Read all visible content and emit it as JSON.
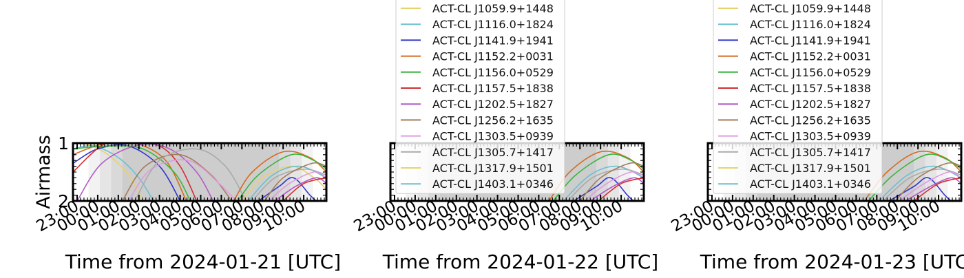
{
  "chart_data": [
    {
      "type": "line",
      "xlabel": "Time from 2024-01-21 [UTC]",
      "ylabel": "Airmass",
      "ylim": [
        2,
        1
      ],
      "y_ticks": [
        "1",
        "2"
      ],
      "x_ticks": [
        "23:00",
        "00:00",
        "01:00",
        "02:00",
        "03:00",
        "04:00",
        "05:00",
        "06:00",
        "07:00",
        "08:00",
        "09:00",
        "10:00"
      ],
      "x_tick_hours": [
        23,
        24,
        25,
        26,
        27,
        28,
        29,
        30,
        31,
        32,
        33,
        34
      ],
      "xlim_hours": [
        22.8,
        35.1
      ],
      "night_shading_hours": [
        [
          23.55,
          34.45
        ],
        [
          24.1,
          33.9
        ],
        [
          24.65,
          33.35
        ],
        [
          25.2,
          32.8
        ]
      ],
      "legend": false,
      "series": [
        {
          "color": "#e8d36a",
          "airmass": [
            [
              22.8,
              1.0
            ],
            [
              23.5,
              1.02
            ],
            [
              24.5,
              1.2
            ],
            [
              25.5,
              1.55
            ],
            [
              26.2,
              2.0
            ]
          ]
        },
        {
          "color": "#6cbfd0",
          "airmass": [
            [
              22.8,
              1.1
            ],
            [
              23.8,
              1.05
            ],
            [
              25.0,
              1.25
            ],
            [
              26.0,
              1.6
            ],
            [
              26.7,
              2.0
            ]
          ]
        },
        {
          "color": "#2f35c9",
          "airmass": [
            [
              22.8,
              1.35
            ],
            [
              24.0,
              1.1
            ],
            [
              25.5,
              1.05
            ],
            [
              27.0,
              1.4
            ],
            [
              28.0,
              2.0
            ]
          ]
        },
        {
          "color": "#d46a1e",
          "airmass": [
            [
              22.8,
              1.2
            ],
            [
              24.2,
              1.02
            ],
            [
              25.8,
              1.0
            ],
            [
              27.3,
              1.3
            ],
            [
              28.3,
              2.0
            ]
          ]
        },
        {
          "color": "#3cb43c",
          "airmass": [
            [
              22.8,
              1.1
            ],
            [
              24.5,
              1.05
            ],
            [
              26.2,
              1.1
            ],
            [
              27.7,
              1.5
            ],
            [
              28.5,
              2.0
            ]
          ]
        },
        {
          "color": "#d12f2f",
          "airmass": [
            [
              22.8,
              1.5
            ],
            [
              24.3,
              1.02
            ],
            [
              25.6,
              1.0
            ],
            [
              27.0,
              1.05
            ],
            [
              28.0,
              1.4
            ],
            [
              28.8,
              2.0
            ]
          ]
        },
        {
          "color": "#b25ac8",
          "airmass": [
            [
              23.0,
              2.0
            ],
            [
              24.2,
              1.35
            ],
            [
              26.0,
              1.03
            ],
            [
              27.5,
              1.1
            ],
            [
              28.8,
              1.5
            ],
            [
              29.6,
              2.0
            ]
          ]
        },
        {
          "color": "#a57c5a",
          "airmass": [
            [
              25.2,
              2.0
            ],
            [
              26.3,
              1.4
            ],
            [
              28.0,
              1.2
            ],
            [
              29.5,
              1.55
            ],
            [
              30.5,
              2.0
            ]
          ]
        },
        {
          "color": "#e09ae0",
          "airmass": [
            [
              25.5,
              2.0
            ],
            [
              26.6,
              1.45
            ],
            [
              28.4,
              1.3
            ],
            [
              29.9,
              1.7
            ],
            [
              30.7,
              2.0
            ]
          ]
        },
        {
          "color": "#aaaaaa",
          "airmass": [
            [
              25.8,
              2.0
            ],
            [
              27.0,
              1.3
            ],
            [
              28.8,
              1.1
            ],
            [
              30.2,
              1.4
            ],
            [
              31.2,
              2.0
            ]
          ]
        },
        {
          "color": "#d46a1e",
          "airmass": [
            [
              30.6,
              2.0
            ],
            [
              31.5,
              1.5
            ],
            [
              33.0,
              1.15
            ],
            [
              34.3,
              1.25
            ],
            [
              35.1,
              1.5
            ]
          ]
        },
        {
          "color": "#3cb43c",
          "airmass": [
            [
              30.8,
              2.0
            ],
            [
              31.8,
              1.55
            ],
            [
              33.4,
              1.2
            ],
            [
              34.5,
              1.3
            ],
            [
              35.1,
              1.45
            ]
          ]
        },
        {
          "color": "#e8d36a",
          "airmass": [
            [
              31.0,
              2.0
            ],
            [
              32.0,
              1.6
            ],
            [
              33.4,
              1.4
            ],
            [
              34.5,
              1.6
            ],
            [
              35.1,
              1.8
            ]
          ]
        },
        {
          "color": "#6cbfd0",
          "airmass": [
            [
              31.3,
              2.0
            ],
            [
              32.5,
              1.55
            ],
            [
              33.8,
              1.4
            ],
            [
              35.1,
              1.6
            ]
          ]
        },
        {
          "color": "#aaaaaa",
          "airmass": [
            [
              31.5,
              2.0
            ],
            [
              32.6,
              1.6
            ],
            [
              34.0,
              1.45
            ],
            [
              35.1,
              1.55
            ]
          ]
        },
        {
          "color": "#2f35c9",
          "airmass": [
            [
              31.8,
              2.0
            ],
            [
              32.8,
              1.75
            ],
            [
              33.5,
              1.6
            ],
            [
              34.3,
              1.9
            ],
            [
              34.6,
              2.0
            ]
          ]
        },
        {
          "color": "#a57c5a",
          "airmass": [
            [
              32.1,
              2.0
            ],
            [
              33.0,
              1.6
            ],
            [
              34.4,
              1.35
            ],
            [
              35.1,
              1.4
            ]
          ]
        },
        {
          "color": "#e09ae0",
          "airmass": [
            [
              32.3,
              2.0
            ],
            [
              33.3,
              1.7
            ],
            [
              34.5,
              1.5
            ],
            [
              35.1,
              1.6
            ]
          ]
        },
        {
          "color": "#b25ac8",
          "airmass": [
            [
              32.6,
              2.0
            ],
            [
              33.6,
              1.75
            ],
            [
              34.6,
              1.6
            ],
            [
              35.1,
              1.7
            ]
          ]
        },
        {
          "color": "#d12f2f",
          "airmass": [
            [
              33.0,
              2.0
            ],
            [
              34.0,
              1.7
            ],
            [
              35.1,
              1.6
            ]
          ]
        }
      ]
    },
    {
      "type": "line",
      "xlabel": "Time from 2024-01-22 [UTC]",
      "ylabel": "",
      "ylim": [
        2,
        1
      ],
      "y_ticks": [],
      "x_ticks": [
        "23:00",
        "00:00",
        "01:00",
        "02:00",
        "03:00",
        "04:00",
        "05:00",
        "06:00",
        "07:00",
        "08:00",
        "09:00",
        "10:00"
      ],
      "x_tick_hours": [
        23,
        24,
        25,
        26,
        27,
        28,
        29,
        30,
        31,
        32,
        33,
        34
      ],
      "xlim_hours": [
        22.8,
        35.1
      ],
      "night_shading_hours": [
        [
          23.55,
          34.45
        ],
        [
          24.1,
          33.9
        ],
        [
          24.65,
          33.35
        ],
        [
          25.2,
          32.8
        ]
      ],
      "legend": true,
      "legend_placement": "upper-left, extending above the axes",
      "legend_entries": [
        {
          "label": "ACT-CL J1059.9+1448",
          "color": "#e8d36a"
        },
        {
          "label": "ACT-CL J1116.0+1824",
          "color": "#6cbfd0"
        },
        {
          "label": "ACT-CL J1141.9+1941",
          "color": "#2f35c9"
        },
        {
          "label": "ACT-CL J1152.2+0031",
          "color": "#d46a1e"
        },
        {
          "label": "ACT-CL J1156.0+0529",
          "color": "#3cb43c"
        },
        {
          "label": "ACT-CL J1157.5+1838",
          "color": "#d12f2f"
        },
        {
          "label": "ACT-CL J1202.5+1827",
          "color": "#b25ac8"
        },
        {
          "label": "ACT-CL J1256.2+1635",
          "color": "#a57c5a"
        },
        {
          "label": "ACT-CL J1303.5+0939",
          "color": "#e09ae0"
        },
        {
          "label": "ACT-CL J1305.7+1417",
          "color": "#aaaaaa"
        },
        {
          "label": "ACT-CL J1317.9+1501",
          "color": "#e8d36a"
        },
        {
          "label": "ACT-CL J1403.1+0346",
          "color": "#6cbfd0"
        }
      ],
      "series": [
        {
          "color": "#d46a1e",
          "airmass": [
            [
              30.5,
              2.0
            ],
            [
              31.5,
              1.5
            ],
            [
              33.0,
              1.15
            ],
            [
              34.3,
              1.25
            ],
            [
              35.1,
              1.5
            ]
          ]
        },
        {
          "color": "#3cb43c",
          "airmass": [
            [
              30.7,
              2.0
            ],
            [
              31.8,
              1.55
            ],
            [
              33.4,
              1.2
            ],
            [
              34.5,
              1.3
            ],
            [
              35.1,
              1.45
            ]
          ]
        },
        {
          "color": "#6cbfd0",
          "airmass": [
            [
              31.2,
              2.0
            ],
            [
              32.5,
              1.55
            ],
            [
              33.8,
              1.4
            ],
            [
              35.1,
              1.6
            ]
          ]
        },
        {
          "color": "#aaaaaa",
          "airmass": [
            [
              31.4,
              2.0
            ],
            [
              32.6,
              1.6
            ],
            [
              34.0,
              1.45
            ],
            [
              35.1,
              1.55
            ]
          ]
        },
        {
          "color": "#2f35c9",
          "airmass": [
            [
              31.7,
              2.0
            ],
            [
              32.8,
              1.75
            ],
            [
              33.5,
              1.6
            ],
            [
              34.3,
              1.9
            ],
            [
              34.6,
              2.0
            ]
          ]
        },
        {
          "color": "#a57c5a",
          "airmass": [
            [
              32.0,
              2.0
            ],
            [
              33.0,
              1.6
            ],
            [
              34.4,
              1.35
            ],
            [
              35.1,
              1.4
            ]
          ]
        },
        {
          "color": "#e09ae0",
          "airmass": [
            [
              32.2,
              2.0
            ],
            [
              33.3,
              1.7
            ],
            [
              34.5,
              1.5
            ],
            [
              35.1,
              1.6
            ]
          ]
        },
        {
          "color": "#b25ac8",
          "airmass": [
            [
              32.5,
              2.0
            ],
            [
              33.6,
              1.75
            ],
            [
              34.6,
              1.6
            ],
            [
              35.1,
              1.7
            ]
          ]
        },
        {
          "color": "#d12f2f",
          "airmass": [
            [
              32.9,
              2.0
            ],
            [
              34.0,
              1.7
            ],
            [
              35.1,
              1.6
            ]
          ]
        }
      ]
    },
    {
      "type": "line",
      "xlabel": "Time from 2024-01-23 [UTC]",
      "ylabel": "",
      "ylim": [
        2,
        1
      ],
      "y_ticks": [],
      "x_ticks": [
        "23:00",
        "00:00",
        "01:00",
        "02:00",
        "03:00",
        "04:00",
        "05:00",
        "06:00",
        "07:00",
        "08:00",
        "09:00",
        "10:00"
      ],
      "x_tick_hours": [
        23,
        24,
        25,
        26,
        27,
        28,
        29,
        30,
        31,
        32,
        33,
        34
      ],
      "xlim_hours": [
        22.8,
        35.1
      ],
      "night_shading_hours": [
        [
          23.55,
          34.45
        ],
        [
          24.1,
          33.9
        ],
        [
          24.65,
          33.35
        ],
        [
          25.2,
          32.8
        ]
      ],
      "legend": true,
      "legend_placement": "upper-left, extending above the axes",
      "legend_entries": [
        {
          "label": "ACT-CL J1059.9+1448",
          "color": "#e8d36a"
        },
        {
          "label": "ACT-CL J1116.0+1824",
          "color": "#6cbfd0"
        },
        {
          "label": "ACT-CL J1141.9+1941",
          "color": "#2f35c9"
        },
        {
          "label": "ACT-CL J1152.2+0031",
          "color": "#d46a1e"
        },
        {
          "label": "ACT-CL J1156.0+0529",
          "color": "#3cb43c"
        },
        {
          "label": "ACT-CL J1157.5+1838",
          "color": "#d12f2f"
        },
        {
          "label": "ACT-CL J1202.5+1827",
          "color": "#b25ac8"
        },
        {
          "label": "ACT-CL J1256.2+1635",
          "color": "#a57c5a"
        },
        {
          "label": "ACT-CL J1303.5+0939",
          "color": "#e09ae0"
        },
        {
          "label": "ACT-CL J1305.7+1417",
          "color": "#aaaaaa"
        },
        {
          "label": "ACT-CL J1317.9+1501",
          "color": "#e8d36a"
        },
        {
          "label": "ACT-CL J1403.1+0346",
          "color": "#6cbfd0"
        }
      ],
      "series": [
        {
          "color": "#d46a1e",
          "airmass": [
            [
              30.4,
              2.0
            ],
            [
              31.5,
              1.5
            ],
            [
              33.0,
              1.15
            ],
            [
              34.3,
              1.25
            ],
            [
              35.1,
              1.5
            ]
          ]
        },
        {
          "color": "#3cb43c",
          "airmass": [
            [
              30.6,
              2.0
            ],
            [
              31.8,
              1.55
            ],
            [
              33.4,
              1.2
            ],
            [
              34.5,
              1.3
            ],
            [
              35.1,
              1.45
            ]
          ]
        },
        {
          "color": "#6cbfd0",
          "airmass": [
            [
              31.1,
              2.0
            ],
            [
              32.5,
              1.55
            ],
            [
              33.8,
              1.4
            ],
            [
              35.1,
              1.6
            ]
          ]
        },
        {
          "color": "#aaaaaa",
          "airmass": [
            [
              31.3,
              2.0
            ],
            [
              32.6,
              1.6
            ],
            [
              34.0,
              1.45
            ],
            [
              35.1,
              1.55
            ]
          ]
        },
        {
          "color": "#2f35c9",
          "airmass": [
            [
              31.6,
              2.0
            ],
            [
              32.8,
              1.75
            ],
            [
              33.5,
              1.6
            ],
            [
              34.3,
              1.9
            ],
            [
              34.6,
              2.0
            ]
          ]
        },
        {
          "color": "#a57c5a",
          "airmass": [
            [
              31.9,
              2.0
            ],
            [
              33.0,
              1.6
            ],
            [
              34.4,
              1.35
            ],
            [
              35.1,
              1.4
            ]
          ]
        },
        {
          "color": "#e09ae0",
          "airmass": [
            [
              32.1,
              2.0
            ],
            [
              33.3,
              1.7
            ],
            [
              34.5,
              1.5
            ],
            [
              35.1,
              1.6
            ]
          ]
        },
        {
          "color": "#b25ac8",
          "airmass": [
            [
              32.4,
              2.0
            ],
            [
              33.6,
              1.75
            ],
            [
              34.6,
              1.6
            ],
            [
              35.1,
              1.7
            ]
          ]
        },
        {
          "color": "#d12f2f",
          "airmass": [
            [
              32.8,
              2.0
            ],
            [
              34.0,
              1.7
            ],
            [
              35.1,
              1.6
            ]
          ]
        }
      ]
    }
  ]
}
